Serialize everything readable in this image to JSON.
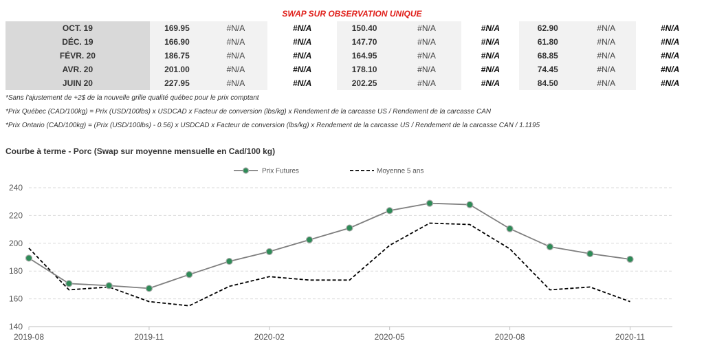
{
  "swap": {
    "title": "SWAP SUR OBSERVATION UNIQUE",
    "rows": [
      {
        "month": "OCT. 19",
        "v1": "169.95",
        "na1": "#N/A",
        "nab1": "#N/A",
        "v2": "150.40",
        "na2": "#N/A",
        "nab2": "#N/A",
        "v3": "62.90",
        "na3": "#N/A",
        "nab3": "#N/A"
      },
      {
        "month": "DÉC. 19",
        "v1": "166.90",
        "na1": "#N/A",
        "nab1": "#N/A",
        "v2": "147.70",
        "na2": "#N/A",
        "nab2": "#N/A",
        "v3": "61.80",
        "na3": "#N/A",
        "nab3": "#N/A"
      },
      {
        "month": "FÉVR. 20",
        "v1": "186.75",
        "na1": "#N/A",
        "nab1": "#N/A",
        "v2": "164.95",
        "na2": "#N/A",
        "nab2": "#N/A",
        "v3": "68.85",
        "na3": "#N/A",
        "nab3": "#N/A"
      },
      {
        "month": "AVR. 20",
        "v1": "201.00",
        "na1": "#N/A",
        "nab1": "#N/A",
        "v2": "178.10",
        "na2": "#N/A",
        "nab2": "#N/A",
        "v3": "74.45",
        "na3": "#N/A",
        "nab3": "#N/A"
      },
      {
        "month": "JUIN 20",
        "v1": "227.95",
        "na1": "#N/A",
        "nab1": "#N/A",
        "v2": "202.25",
        "na2": "#N/A",
        "nab2": "#N/A",
        "v3": "84.50",
        "na3": "#N/A",
        "nab3": "#N/A"
      }
    ]
  },
  "notes": {
    "n1": "*Sans l'ajustement de +2$ de la nouvelle grille qualité québec pour le prix comptant",
    "n2": "*Prix Québec (CAD/100kg) = Prix (USD/100lbs) x USDCAD x Facteur de conversion (lbs/kg) x Rendement de la carcasse US / Rendement de la carcasse CAN",
    "n3": "*Prix Ontario (CAD/100kg) = (Prix (USD/100lbs) - 0.56) x USDCAD x Facteur de conversion (lbs/kg) x Rendement de la carcasse US / Rendement de la carcasse CAN / 1.1195"
  },
  "chart_data": {
    "type": "line",
    "title": "Courbe à terme - Porc (Swap sur moyenne mensuelle en Cad/100 kg)",
    "x": [
      "2019-08",
      "2019-09",
      "2019-10",
      "2019-11",
      "2019-12",
      "2020-01",
      "2020-02",
      "2020-03",
      "2020-04",
      "2020-05",
      "2020-06",
      "2020-07",
      "2020-08",
      "2020-09",
      "2020-10",
      "2020-11"
    ],
    "x_tick_labels": [
      "2019-08",
      "2019-11",
      "2020-02",
      "2020-05",
      "2020-08",
      "2020-11"
    ],
    "ylim": [
      140,
      240
    ],
    "y_ticks": [
      140,
      160,
      180,
      200,
      220,
      240
    ],
    "grid": true,
    "legend_position": "top",
    "series": [
      {
        "name": "Prix Futures",
        "style": "solid-markers",
        "color": "#7f7f7f",
        "marker_color": "#2e8b57",
        "values": [
          189.3,
          171.0,
          169.5,
          167.5,
          177.5,
          187.0,
          194.0,
          202.5,
          211.0,
          223.5,
          228.8,
          227.8,
          210.5,
          197.5,
          192.5,
          188.5
        ]
      },
      {
        "name": "Moyenne 5 ans",
        "style": "dashed",
        "color": "#000000",
        "values": [
          196.5,
          166.5,
          168.5,
          158.0,
          155.0,
          169.0,
          176.0,
          173.5,
          173.5,
          198.5,
          214.5,
          213.5,
          196.0,
          166.5,
          168.5,
          158.0
        ]
      }
    ]
  }
}
